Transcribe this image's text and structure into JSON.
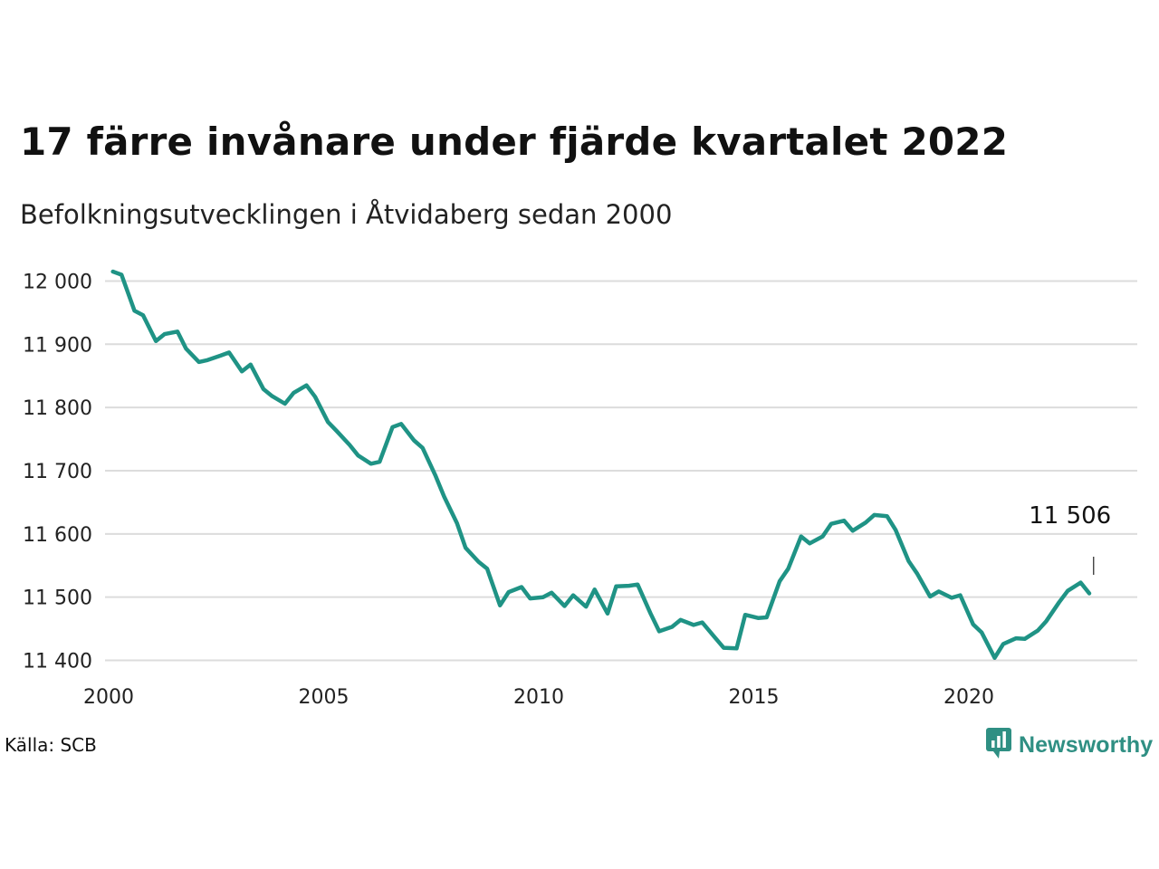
{
  "title": "17 färre invånare under fjärde kvartalet 2022",
  "subtitle": "Befolkningsutvecklingen i Åtvidaberg sedan 2000",
  "source": "Källa: SCB",
  "brand": {
    "name": "Newsworthy",
    "icon": "newsworthy-logo-icon",
    "color": "#2f8f83"
  },
  "chart_data": {
    "type": "line",
    "line_color": "#1f9385",
    "grid": true,
    "x_ticks": [
      2000,
      2005,
      2010,
      2015,
      2020
    ],
    "y_ticks": [
      {
        "value": 11400,
        "label": "11 400"
      },
      {
        "value": 11500,
        "label": "11 500"
      },
      {
        "value": 11600,
        "label": "11 600"
      },
      {
        "value": 11700,
        "label": "11 700"
      },
      {
        "value": 11800,
        "label": "11 800"
      },
      {
        "value": 11900,
        "label": "11 900"
      },
      {
        "value": 12000,
        "label": "12 000"
      }
    ],
    "ylim": [
      11385,
      12025
    ],
    "xlim": [
      2000,
      2024
    ],
    "annotation": {
      "label": "11 506",
      "x": 2022.9,
      "y": 11506
    },
    "series": [
      {
        "x": [
          2000.1,
          2000.3,
          2000.6,
          2000.8,
          2001.1,
          2001.3,
          2001.6,
          2001.8,
          2002.1,
          2002.3,
          2002.6,
          2002.8,
          2003.1,
          2003.3,
          2003.6,
          2003.8,
          2004.1,
          2004.3,
          2004.6,
          2004.8,
          2005.1,
          2005.3,
          2005.6,
          2005.8,
          2006.1,
          2006.3,
          2006.6,
          2006.8,
          2007.1,
          2007.3,
          2007.6,
          2007.8,
          2008.1,
          2008.3,
          2008.6,
          2008.8,
          2009.1,
          2009.3,
          2009.6,
          2009.8,
          2010.1,
          2010.3,
          2010.6,
          2010.8,
          2011.1,
          2011.3,
          2011.6,
          2011.8,
          2012.1,
          2012.3,
          2012.6,
          2012.8,
          2013.1,
          2013.3,
          2013.6,
          2013.8,
          2014.1,
          2014.3,
          2014.6,
          2014.8,
          2015.1,
          2015.3,
          2015.6,
          2015.8,
          2016.1,
          2016.3,
          2016.6,
          2016.8,
          2017.1,
          2017.3,
          2017.6,
          2017.8,
          2018.1,
          2018.3,
          2018.6,
          2018.8,
          2019.1,
          2019.3,
          2019.6,
          2019.8,
          2020.1,
          2020.3,
          2020.6,
          2020.8,
          2021.1,
          2021.3,
          2021.6,
          2021.8,
          2022.1,
          2022.3,
          2022.6,
          2022.8
        ],
        "y": [
          12015,
          12010,
          11953,
          11946,
          11905,
          11916,
          11920,
          11893,
          11872,
          11875,
          11882,
          11887,
          11857,
          11868,
          11829,
          11818,
          11806,
          11823,
          11835,
          11817,
          11777,
          11763,
          11741,
          11724,
          11711,
          11714,
          11769,
          11774,
          11748,
          11736,
          11692,
          11659,
          11617,
          11578,
          11556,
          11545,
          11487,
          11508,
          11516,
          11498,
          11500,
          11507,
          11486,
          11503,
          11485,
          11512,
          11474,
          11517,
          11518,
          11520,
          11474,
          11446,
          11453,
          11464,
          11456,
          11460,
          11436,
          11420,
          11419,
          11472,
          11467,
          11468,
          11525,
          11545,
          11596,
          11585,
          11596,
          11616,
          11621,
          11605,
          11618,
          11630,
          11628,
          11606,
          11557,
          11537,
          11501,
          11509,
          11499,
          11503,
          11457,
          11444,
          11404,
          11426,
          11435,
          11434,
          11447,
          11462,
          11492,
          11510,
          11523,
          11506
        ]
      }
    ]
  }
}
